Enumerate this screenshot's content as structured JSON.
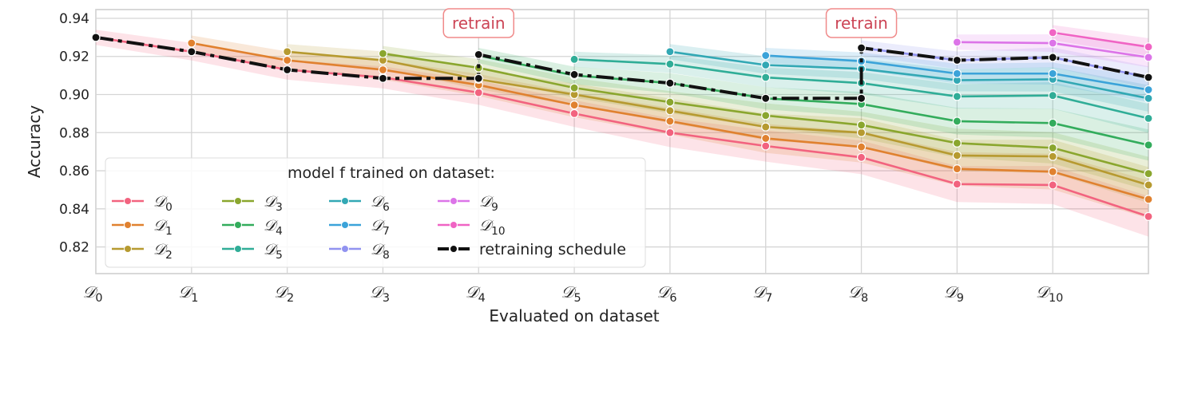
{
  "chart_data": {
    "type": "line",
    "title": "",
    "xlabel": "Evaluated on dataset",
    "ylabel": "Accuracy",
    "ylim": [
      0.806,
      0.9446
    ],
    "xlim": [
      0,
      11
    ],
    "grid": true,
    "x_ticks": [
      {
        "x": 0,
        "label": "𝒟",
        "sub": "0"
      },
      {
        "x": 1,
        "label": "𝒟",
        "sub": "1"
      },
      {
        "x": 2,
        "label": "𝒟",
        "sub": "2"
      },
      {
        "x": 3,
        "label": "𝒟",
        "sub": "3"
      },
      {
        "x": 4,
        "label": "𝒟",
        "sub": "4"
      },
      {
        "x": 5,
        "label": "𝒟",
        "sub": "5"
      },
      {
        "x": 6,
        "label": "𝒟",
        "sub": "6"
      },
      {
        "x": 7,
        "label": "𝒟",
        "sub": "7"
      },
      {
        "x": 8,
        "label": "𝒟",
        "sub": "8"
      },
      {
        "x": 9,
        "label": "𝒟",
        "sub": "9"
      },
      {
        "x": 10,
        "label": "𝒟",
        "sub": "10"
      }
    ],
    "y_ticks": [
      "0.82",
      "0.84",
      "0.86",
      "0.88",
      "0.90",
      "0.92",
      "0.94"
    ],
    "legend": {
      "title": "model f trained on dataset:",
      "placement": "lower-left"
    },
    "annotations": [
      {
        "x": 4,
        "text": "retrain"
      },
      {
        "x": 8,
        "text": "retrain"
      }
    ],
    "series": [
      {
        "name": "𝒟",
        "sub": "0",
        "color": "#f2637f",
        "start": 0,
        "values": [
          0.93,
          0.9225,
          0.913,
          0.909,
          0.901,
          0.89,
          0.88,
          0.873,
          0.867,
          0.853,
          0.8525,
          0.836
        ]
      },
      {
        "name": "𝒟",
        "sub": "1",
        "color": "#e0812f",
        "start": 1,
        "values": [
          0.927,
          0.918,
          0.913,
          0.905,
          0.8945,
          0.886,
          0.877,
          0.8725,
          0.861,
          0.8595,
          0.845
        ]
      },
      {
        "name": "𝒟",
        "sub": "2",
        "color": "#b69a30",
        "start": 2,
        "values": [
          0.9225,
          0.918,
          0.908,
          0.9,
          0.8915,
          0.883,
          0.88,
          0.868,
          0.8675,
          0.8525
        ]
      },
      {
        "name": "𝒟",
        "sub": "3",
        "color": "#8aa62e",
        "start": 3,
        "values": [
          0.9215,
          0.914,
          0.9035,
          0.896,
          0.889,
          0.884,
          0.8745,
          0.872,
          0.8585
        ]
      },
      {
        "name": "𝒟",
        "sub": "4",
        "color": "#33ac5c",
        "start": 4,
        "values": [
          0.9205,
          0.91,
          0.906,
          0.898,
          0.895,
          0.886,
          0.885,
          0.8735
        ]
      },
      {
        "name": "𝒟",
        "sub": "5",
        "color": "#30ad97",
        "start": 5,
        "values": [
          0.9185,
          0.916,
          0.909,
          0.906,
          0.899,
          0.8995,
          0.8875
        ]
      },
      {
        "name": "𝒟",
        "sub": "6",
        "color": "#32a8b4",
        "start": 6,
        "values": [
          0.9225,
          0.9155,
          0.9135,
          0.9075,
          0.908,
          0.898
        ]
      },
      {
        "name": "𝒟",
        "sub": "7",
        "color": "#3ba3d9",
        "start": 7,
        "values": [
          0.9205,
          0.9175,
          0.911,
          0.911,
          0.9025
        ]
      },
      {
        "name": "𝒟",
        "sub": "8",
        "color": "#9193f0",
        "start": 8,
        "values": [
          0.9245,
          0.918,
          0.9195,
          0.909
        ]
      },
      {
        "name": "𝒟",
        "sub": "9",
        "color": "#dc74e8",
        "start": 9,
        "values": [
          0.9275,
          0.927,
          0.9195
        ]
      },
      {
        "name": "𝒟",
        "sub": "10",
        "color": "#f064c4",
        "start": 10,
        "values": [
          0.9325,
          0.925
        ]
      }
    ],
    "retraining_schedule": {
      "name": "retraining schedule",
      "color": "#111111",
      "points": [
        [
          0,
          0.93
        ],
        [
          1,
          0.9225
        ],
        [
          2,
          0.913
        ],
        [
          3,
          0.9085
        ],
        [
          4,
          0.9085
        ],
        [
          4,
          0.921
        ],
        [
          5,
          0.9105
        ],
        [
          6,
          0.906
        ],
        [
          7,
          0.898
        ],
        [
          8,
          0.898
        ],
        [
          8,
          0.9245
        ],
        [
          9,
          0.918
        ],
        [
          10,
          0.9195
        ],
        [
          11,
          0.909
        ]
      ]
    },
    "band_halfwidth": 0.004
  }
}
